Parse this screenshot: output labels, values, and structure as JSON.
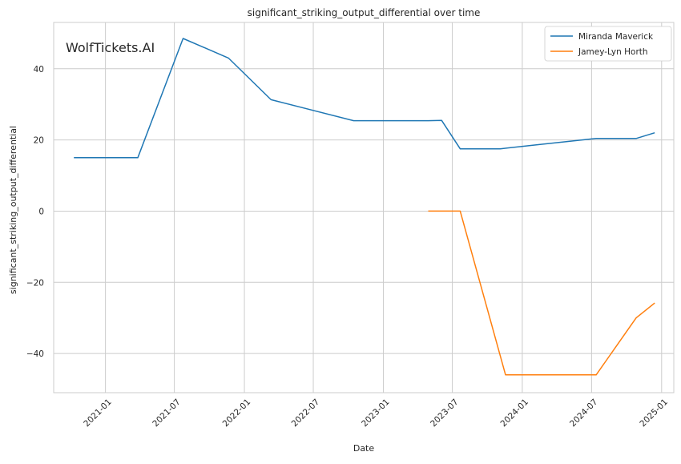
{
  "watermark": "WolfTickets.AI",
  "colors": {
    "series": [
      "#1f77b4",
      "#ff7f0e"
    ],
    "grid": "#cccccc",
    "axes": "#cccccc",
    "watermark": "#bdbdbd"
  },
  "chart_data": {
    "type": "line",
    "title": "significant_striking_output_differential over time",
    "xlabel": "Date",
    "ylabel": "significant_striking_output_differential",
    "x_range": [
      "2020-08-18",
      "2025-02-02"
    ],
    "ylim": [
      -51,
      53
    ],
    "grid": true,
    "legend_position": "top-right",
    "x_ticks": [
      {
        "date": "2021-01-01",
        "label": "2021-01"
      },
      {
        "date": "2021-07-01",
        "label": "2021-07"
      },
      {
        "date": "2022-01-01",
        "label": "2022-01"
      },
      {
        "date": "2022-07-01",
        "label": "2022-07"
      },
      {
        "date": "2023-01-01",
        "label": "2023-01"
      },
      {
        "date": "2023-07-01",
        "label": "2023-07"
      },
      {
        "date": "2024-01-01",
        "label": "2024-01"
      },
      {
        "date": "2024-07-01",
        "label": "2024-07"
      },
      {
        "date": "2025-01-01",
        "label": "2025-01"
      }
    ],
    "y_ticks": [
      {
        "value": 40,
        "label": "40"
      },
      {
        "value": 20,
        "label": "20"
      },
      {
        "value": 0,
        "label": "0"
      },
      {
        "value": -20,
        "label": "−20"
      },
      {
        "value": -40,
        "label": "−40"
      }
    ],
    "series": [
      {
        "name": "Miranda Maverick",
        "points": [
          {
            "x": "2020-10-10",
            "y": 15.0
          },
          {
            "x": "2021-03-27",
            "y": 15.0
          },
          {
            "x": "2021-07-24",
            "y": 48.5
          },
          {
            "x": "2021-11-20",
            "y": 43.0
          },
          {
            "x": "2022-03-12",
            "y": 31.3
          },
          {
            "x": "2022-10-15",
            "y": 25.4
          },
          {
            "x": "2023-04-29",
            "y": 25.4
          },
          {
            "x": "2023-06-03",
            "y": 25.5
          },
          {
            "x": "2023-07-22",
            "y": 17.5
          },
          {
            "x": "2023-11-04",
            "y": 17.5
          },
          {
            "x": "2024-02-24",
            "y": 18.8
          },
          {
            "x": "2024-07-13",
            "y": 20.4
          },
          {
            "x": "2024-10-26",
            "y": 20.4
          },
          {
            "x": "2024-12-14",
            "y": 22.0
          }
        ]
      },
      {
        "name": "Jamey-Lyn Horth",
        "points": [
          {
            "x": "2023-04-29",
            "y": 0.0
          },
          {
            "x": "2023-07-22",
            "y": 0.0
          },
          {
            "x": "2023-11-18",
            "y": -46.0
          },
          {
            "x": "2024-07-13",
            "y": -46.0
          },
          {
            "x": "2024-10-26",
            "y": -30.0
          },
          {
            "x": "2024-12-14",
            "y": -25.8
          }
        ]
      }
    ]
  }
}
